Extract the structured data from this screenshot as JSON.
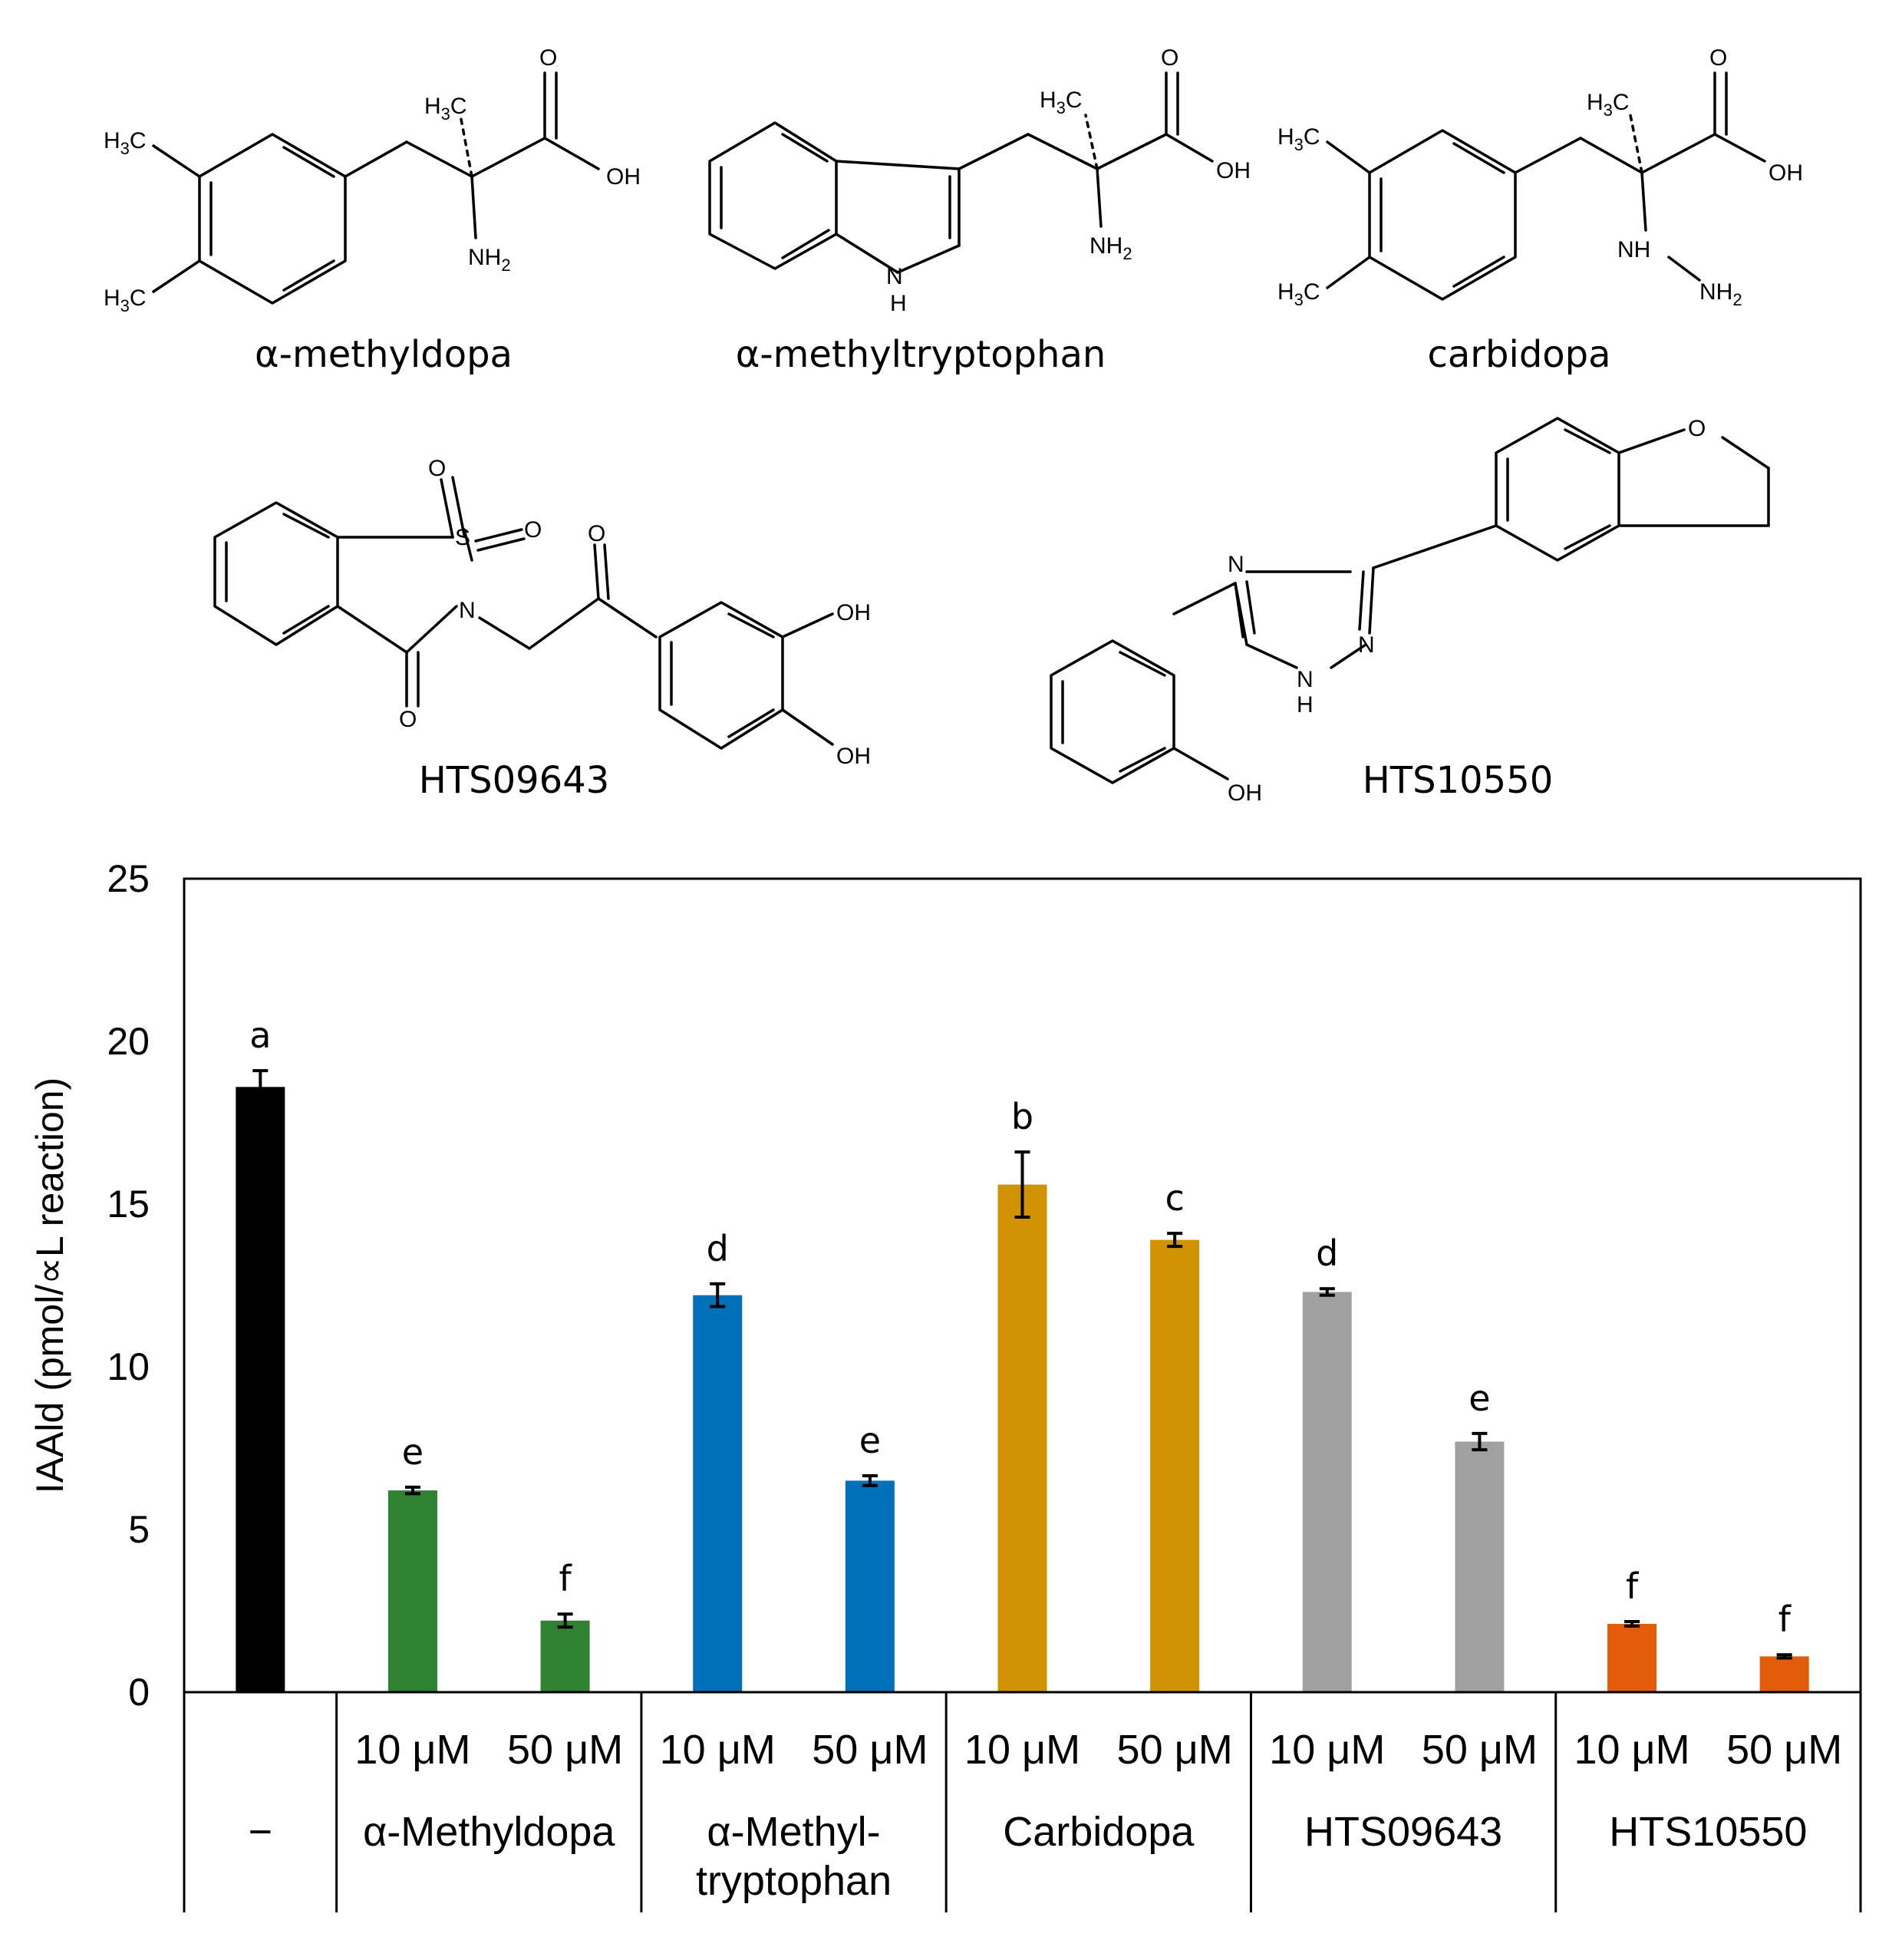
{
  "structures": {
    "compound_names": [
      "α-methyldopa",
      "α-methyltryptophan",
      "carbidopa",
      "HTS09643",
      "HTS10550"
    ],
    "atoms": {
      "methyl": "H3C",
      "oxygen": "O",
      "hydroxyl": "OH",
      "amine": "NH2",
      "hydrazine_nh": "NH",
      "nitrogen": "N",
      "hydrogen": "H",
      "sulfur": "S"
    }
  },
  "chart_data": {
    "type": "bar",
    "title": "",
    "xlabel": "",
    "ylabel": "IAAld (pmol/∝L reaction)",
    "ylim": [
      0,
      25
    ],
    "yticks": [
      0,
      5,
      10,
      15,
      20,
      25
    ],
    "grid": false,
    "legend": "none",
    "bars": [
      {
        "group": "−",
        "concentration": "",
        "value": 18.6,
        "error": 0.5,
        "letter": "a",
        "color": "#000000"
      },
      {
        "group": "α-Methyldopa",
        "concentration": "10 μM",
        "value": 6.2,
        "error": 0.1,
        "letter": "e",
        "color": "#2e8231"
      },
      {
        "group": "α-Methyldopa",
        "concentration": "50 μM",
        "value": 2.2,
        "error": 0.2,
        "letter": "f",
        "color": "#2e8231"
      },
      {
        "group": "α-Methyl-tryptophan",
        "concentration": "10 μM",
        "value": 12.2,
        "error": 0.35,
        "letter": "d",
        "color": "#0071b9"
      },
      {
        "group": "α-Methyl-tryptophan",
        "concentration": "50 μM",
        "value": 6.5,
        "error": 0.15,
        "letter": "e",
        "color": "#0071b9"
      },
      {
        "group": "Carbidopa",
        "concentration": "10 μM",
        "value": 15.6,
        "error": 1.0,
        "letter": "b",
        "color": "#d19302"
      },
      {
        "group": "Carbidopa",
        "concentration": "50 μM",
        "value": 13.9,
        "error": 0.2,
        "letter": "c",
        "color": "#d19302"
      },
      {
        "group": "HTS09643",
        "concentration": "10 μM",
        "value": 12.3,
        "error": 0.1,
        "letter": "d",
        "color": "#a0a0a0"
      },
      {
        "group": "HTS09643",
        "concentration": "50 μM",
        "value": 7.7,
        "error": 0.25,
        "letter": "e",
        "color": "#a0a0a0"
      },
      {
        "group": "HTS10550",
        "concentration": "10 μM",
        "value": 2.1,
        "error": 0.07,
        "letter": "f",
        "color": "#e25c0a"
      },
      {
        "group": "HTS10550",
        "concentration": "50 μM",
        "value": 1.1,
        "error": 0.05,
        "letter": "f",
        "color": "#e25c0a"
      }
    ],
    "groups": [
      {
        "label_lines": [
          "−"
        ]
      },
      {
        "label_lines": [
          "α-Methyldopa"
        ]
      },
      {
        "label_lines": [
          "α-Methyl-",
          "tryptophan"
        ]
      },
      {
        "label_lines": [
          "Carbidopa"
        ]
      },
      {
        "label_lines": [
          "HTS09643"
        ]
      },
      {
        "label_lines": [
          "HTS10550"
        ]
      }
    ]
  }
}
